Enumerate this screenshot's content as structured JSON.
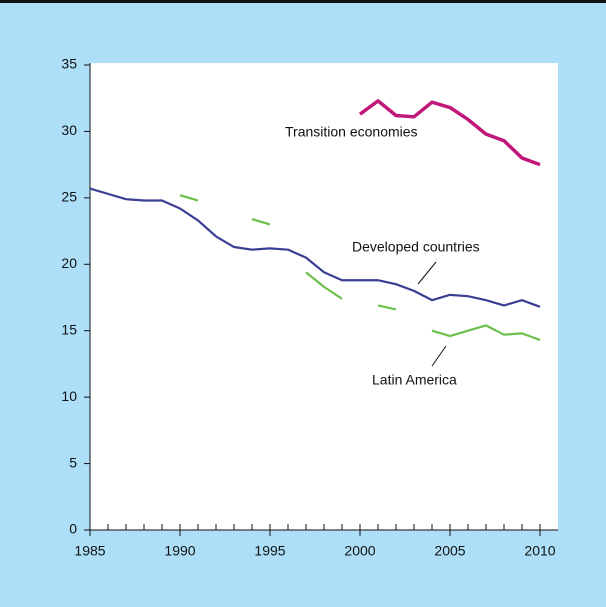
{
  "chart_data": {
    "type": "line",
    "x": [
      1985,
      1986,
      1987,
      1988,
      1989,
      1990,
      1991,
      1992,
      1993,
      1994,
      1995,
      1996,
      1997,
      1998,
      1999,
      2000,
      2001,
      2002,
      2003,
      2004,
      2005,
      2006,
      2007,
      2008,
      2009,
      2010
    ],
    "series": [
      {
        "name": "Developed countries",
        "color": "#3b3f93",
        "dash": false,
        "values": [
          25.7,
          25.3,
          24.9,
          24.8,
          24.8,
          24.2,
          23.3,
          22.1,
          21.3,
          21.1,
          21.2,
          21.1,
          20.5,
          19.4,
          18.8,
          18.8,
          18.8,
          18.5,
          18.0,
          17.3,
          17.7,
          17.6,
          17.3,
          16.9,
          17.3,
          16.8
        ]
      },
      {
        "name": "Transition economies",
        "color": "#c2177a",
        "dash": false,
        "values": [
          null,
          null,
          null,
          null,
          null,
          null,
          null,
          null,
          null,
          null,
          null,
          null,
          null,
          null,
          null,
          31.3,
          32.3,
          31.2,
          31.1,
          32.2,
          31.8,
          30.9,
          29.8,
          29.3,
          28.0,
          27.5
        ]
      },
      {
        "name": "Latin America",
        "color": "#6cbf4b",
        "dash": true,
        "values": [
          null,
          null,
          null,
          null,
          null,
          25.2,
          24.8,
          null,
          null,
          23.4,
          23.0,
          null,
          19.4,
          18.3,
          17.4,
          null,
          16.9,
          16.6,
          null,
          15.0,
          14.6,
          15.0,
          15.4,
          14.7,
          14.8,
          14.3
        ]
      }
    ],
    "xlim": [
      1985,
      2011
    ],
    "xticks": [
      1985,
      1990,
      1995,
      2000,
      2005,
      2010
    ],
    "ylim": [
      0,
      35
    ],
    "yticks": [
      0,
      5,
      10,
      15,
      20,
      25,
      30,
      35
    ]
  }
}
